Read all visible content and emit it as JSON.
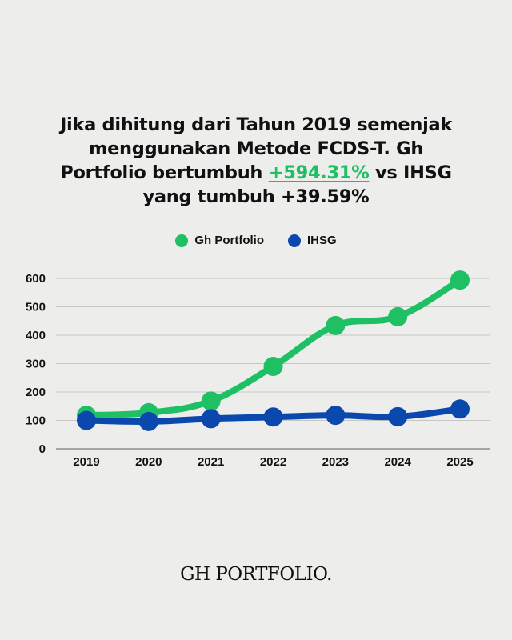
{
  "title": {
    "line1": "Jika dihitung dari Tahun 2019 semenjak",
    "line2": "menggunakan Metode FCDS-T. Gh",
    "line3_pre": "Portfolio bertumbuh ",
    "line3_highlight": "+594.31%",
    "line3_post": " vs IHSG",
    "line4": "yang tumbuh +39.59%"
  },
  "colors": {
    "background": "#ededeb",
    "gh_portfolio": "#1fbf64",
    "ihsg": "#0b48ad",
    "gridline": "#c6c6c4",
    "text": "#111111"
  },
  "legend": [
    {
      "label": "Gh Portfolio",
      "color": "#1fbf64"
    },
    {
      "label": "IHSG",
      "color": "#0b48ad"
    }
  ],
  "footer": {
    "brand": "GH PORTFOLIO."
  },
  "chart_data": {
    "type": "line",
    "title": "Jika dihitung dari Tahun 2019 semenjak menggunakan Metode FCDS-T. Gh Portfolio bertumbuh +594.31% vs IHSG yang tumbuh +39.59%",
    "xlabel": "",
    "ylabel": "",
    "categories": [
      "2019",
      "2020",
      "2021",
      "2022",
      "2023",
      "2024",
      "2025"
    ],
    "series": [
      {
        "name": "Gh Portfolio",
        "color": "#1fbf64",
        "values": [
          118,
          127,
          168,
          290,
          434,
          465,
          594
        ]
      },
      {
        "name": "IHSG",
        "color": "#0b48ad",
        "values": [
          100,
          96,
          106,
          112,
          118,
          113,
          140
        ]
      }
    ],
    "yticks": [
      0,
      100,
      200,
      300,
      400,
      500,
      600
    ],
    "ylim": [
      0,
      600
    ],
    "grid": true,
    "legend_position": "top"
  }
}
